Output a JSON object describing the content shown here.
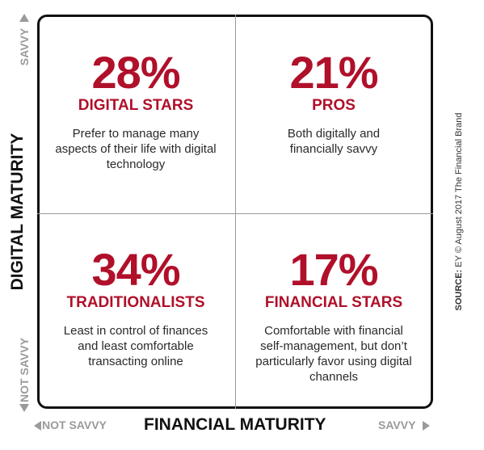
{
  "x_axis": {
    "title": "FINANCIAL MATURITY",
    "low_label": "NOT SAVVY",
    "high_label": "SAVVY"
  },
  "y_axis": {
    "title": "DIGITAL MATURITY",
    "low_label": "NOT SAVVY",
    "high_label": "SAVVY"
  },
  "quadrants": {
    "top_left": {
      "percent": "28%",
      "name": "DIGITAL STARS",
      "description": "Prefer to manage many aspects of their life with digital technology"
    },
    "top_right": {
      "percent": "21%",
      "name": "PROS",
      "description": "Both digitally and financially savvy"
    },
    "bottom_left": {
      "percent": "34%",
      "name": "TRADITIONALISTS",
      "description": "Least in control of finances and least comfortable transacting online"
    },
    "bottom_right": {
      "percent": "17%",
      "name": "FINANCIAL STARS",
      "description": "Comfortable with financial self-management, but don’t particularly favor using digital channels"
    }
  },
  "source": {
    "label": "SOURCE:",
    "text": "EY © August 2017 The Financial Brand"
  },
  "colors": {
    "accent": "#b0102a",
    "axis_gray": "#9a9a9a",
    "border": "#111111",
    "body_text": "#2a2a2a"
  },
  "icons": {
    "up": "arrow-up-icon",
    "down": "arrow-down-icon",
    "left": "arrow-left-icon",
    "right": "arrow-right-icon"
  }
}
